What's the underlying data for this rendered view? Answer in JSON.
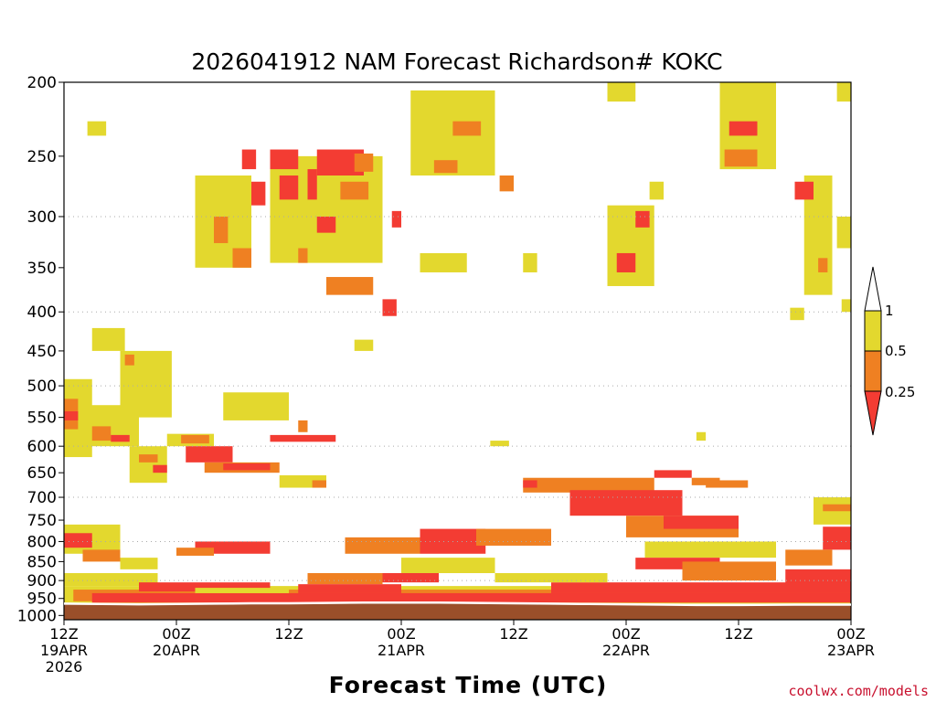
{
  "chart_data": {
    "type": "heatmap",
    "title": "2026041912 NAM Forecast Richardson# KOKC",
    "xlabel": "Forecast Time (UTC)",
    "ylabel": "",
    "credit": "coolwx.com/models",
    "y_axis": {
      "unit": "hPa",
      "range": [
        1000,
        200
      ],
      "ticks": [
        "200",
        "250",
        "300",
        "350",
        "400",
        "450",
        "500",
        "550",
        "600",
        "650",
        "700",
        "750",
        "800",
        "850",
        "900",
        "950",
        "1000"
      ]
    },
    "x_axis": {
      "unit": "hours from 2026-04-19 12Z",
      "range": [
        0,
        84
      ],
      "ticks": [
        {
          "hour": 0,
          "line1": "12Z",
          "line2": "19APR",
          "line3": "2026"
        },
        {
          "hour": 12,
          "line1": "00Z",
          "line2": "20APR",
          "line3": ""
        },
        {
          "hour": 24,
          "line1": "12Z",
          "line2": "",
          "line3": ""
        },
        {
          "hour": 36,
          "line1": "00Z",
          "line2": "21APR",
          "line3": ""
        },
        {
          "hour": 48,
          "line1": "12Z",
          "line2": "",
          "line3": ""
        },
        {
          "hour": 60,
          "line1": "00Z",
          "line2": "22APR",
          "line3": ""
        },
        {
          "hour": 72,
          "line1": "12Z",
          "line2": "",
          "line3": ""
        },
        {
          "hour": 84,
          "line1": "00Z",
          "line2": "23APR",
          "line3": ""
        }
      ]
    },
    "legend": {
      "placement": "right",
      "labels": [
        "1",
        "0.5",
        "0.25"
      ],
      "bins": [
        {
          "range": "<0.25",
          "color": "#f33c33"
        },
        {
          "range": "0.25-0.5",
          "color": "#ef8022"
        },
        {
          "range": "0.5-1",
          "color": "#e3d82e"
        },
        {
          "range": ">1",
          "color": "#ffffff"
        }
      ]
    },
    "colors": {
      "low": "#f33c33",
      "mid": "#ef8022",
      "high": "#e3d82e",
      "surface": "#9a4f2a",
      "grid": "#aaaaaa"
    },
    "surface_pressure_hPa": [
      965,
      966,
      967,
      966,
      965,
      964,
      964,
      963,
      962,
      962,
      962,
      963,
      964,
      965,
      966,
      967,
      968,
      969,
      969,
      968,
      968
    ],
    "surface_pressure_hours": [
      0,
      4,
      8,
      12,
      16,
      20,
      24,
      28,
      32,
      36,
      40,
      44,
      48,
      52,
      56,
      60,
      64,
      68,
      72,
      78,
      84
    ],
    "regions": [
      {
        "bin": "high",
        "h0": 0,
        "h1": 84,
        "p0": 915,
        "p1": 965
      },
      {
        "bin": "mid",
        "h0": 1,
        "h1": 84,
        "p0": 925,
        "p1": 958
      },
      {
        "bin": "low",
        "h0": 3,
        "h1": 84,
        "p0": 935,
        "p1": 962
      },
      {
        "bin": "high",
        "h0": 2.5,
        "h1": 4.5,
        "p0": 225,
        "p1": 235
      },
      {
        "bin": "high",
        "h0": 14,
        "h1": 20,
        "p0": 265,
        "p1": 350
      },
      {
        "bin": "mid",
        "h0": 16,
        "h1": 17.5,
        "p0": 300,
        "p1": 325
      },
      {
        "bin": "mid",
        "h0": 18,
        "h1": 20,
        "p0": 330,
        "p1": 350
      },
      {
        "bin": "high",
        "h0": 22,
        "h1": 34,
        "p0": 250,
        "p1": 345
      },
      {
        "bin": "low",
        "h0": 19,
        "h1": 20.5,
        "p0": 245,
        "p1": 260
      },
      {
        "bin": "low",
        "h0": 20,
        "h1": 21.5,
        "p0": 270,
        "p1": 290
      },
      {
        "bin": "low",
        "h0": 22,
        "h1": 25,
        "p0": 245,
        "p1": 260
      },
      {
        "bin": "low",
        "h0": 23,
        "h1": 25,
        "p0": 265,
        "p1": 285
      },
      {
        "bin": "low",
        "h0": 26,
        "h1": 27,
        "p0": 260,
        "p1": 285
      },
      {
        "bin": "low",
        "h0": 27,
        "h1": 32,
        "p0": 245,
        "p1": 265
      },
      {
        "bin": "mid",
        "h0": 31,
        "h1": 33,
        "p0": 248,
        "p1": 262
      },
      {
        "bin": "mid",
        "h0": 29.5,
        "h1": 32.5,
        "p0": 270,
        "p1": 285
      },
      {
        "bin": "low",
        "h0": 27,
        "h1": 29,
        "p0": 300,
        "p1": 315
      },
      {
        "bin": "mid",
        "h0": 25,
        "h1": 26,
        "p0": 330,
        "p1": 345
      },
      {
        "bin": "mid",
        "h0": 28,
        "h1": 33,
        "p0": 360,
        "p1": 380
      },
      {
        "bin": "low",
        "h0": 34,
        "h1": 35.5,
        "p0": 385,
        "p1": 405
      },
      {
        "bin": "low",
        "h0": 35,
        "h1": 36,
        "p0": 295,
        "p1": 310
      },
      {
        "bin": "high",
        "h0": 37,
        "h1": 46,
        "p0": 205,
        "p1": 265
      },
      {
        "bin": "high",
        "h0": 38,
        "h1": 43,
        "p0": 335,
        "p1": 355
      },
      {
        "bin": "mid",
        "h0": 41.5,
        "h1": 44.5,
        "p0": 225,
        "p1": 235
      },
      {
        "bin": "mid",
        "h0": 39.5,
        "h1": 42,
        "p0": 253,
        "p1": 263
      },
      {
        "bin": "mid",
        "h0": 46.5,
        "h1": 48,
        "p0": 265,
        "p1": 278
      },
      {
        "bin": "high",
        "h0": 49,
        "h1": 50.5,
        "p0": 335,
        "p1": 355
      },
      {
        "bin": "high",
        "h0": 58,
        "h1": 61,
        "p0": 200,
        "p1": 212
      },
      {
        "bin": "high",
        "h0": 58,
        "h1": 63,
        "p0": 290,
        "p1": 370
      },
      {
        "bin": "low",
        "h0": 59,
        "h1": 61,
        "p0": 335,
        "p1": 355
      },
      {
        "bin": "low",
        "h0": 61,
        "h1": 62.5,
        "p0": 295,
        "p1": 310
      },
      {
        "bin": "high",
        "h0": 62.5,
        "h1": 64,
        "p0": 270,
        "p1": 285
      },
      {
        "bin": "high",
        "h0": 70,
        "h1": 76,
        "p0": 200,
        "p1": 260
      },
      {
        "bin": "low",
        "h0": 71,
        "h1": 74,
        "p0": 225,
        "p1": 235
      },
      {
        "bin": "mid",
        "h0": 70.5,
        "h1": 74,
        "p0": 245,
        "p1": 258
      },
      {
        "bin": "high",
        "h0": 79,
        "h1": 82,
        "p0": 265,
        "p1": 380
      },
      {
        "bin": "low",
        "h0": 78,
        "h1": 80,
        "p0": 270,
        "p1": 285
      },
      {
        "bin": "mid",
        "h0": 80.5,
        "h1": 81.5,
        "p0": 340,
        "p1": 355
      },
      {
        "bin": "high",
        "h0": 82.5,
        "h1": 84,
        "p0": 200,
        "p1": 212
      },
      {
        "bin": "high",
        "h0": 82.5,
        "h1": 84,
        "p0": 300,
        "p1": 330
      },
      {
        "bin": "high",
        "h0": 3,
        "h1": 6.5,
        "p0": 420,
        "p1": 450
      },
      {
        "bin": "high",
        "h0": 6,
        "h1": 11.5,
        "p0": 450,
        "p1": 550
      },
      {
        "bin": "mid",
        "h0": 6.5,
        "h1": 7.5,
        "p0": 455,
        "p1": 470
      },
      {
        "bin": "high",
        "h0": 0,
        "h1": 3,
        "p0": 490,
        "p1": 620
      },
      {
        "bin": "mid",
        "h0": 0,
        "h1": 1.5,
        "p0": 520,
        "p1": 570
      },
      {
        "bin": "low",
        "h0": 0,
        "h1": 1.5,
        "p0": 540,
        "p1": 555
      },
      {
        "bin": "high",
        "h0": 2,
        "h1": 8,
        "p0": 530,
        "p1": 600
      },
      {
        "bin": "mid",
        "h0": 3,
        "h1": 5,
        "p0": 565,
        "p1": 590
      },
      {
        "bin": "low",
        "h0": 5,
        "h1": 7,
        "p0": 580,
        "p1": 592
      },
      {
        "bin": "high",
        "h0": 17,
        "h1": 24,
        "p0": 510,
        "p1": 555
      },
      {
        "bin": "mid",
        "h0": 25,
        "h1": 26,
        "p0": 555,
        "p1": 575
      },
      {
        "bin": "low",
        "h0": 22,
        "h1": 29,
        "p0": 580,
        "p1": 592
      },
      {
        "bin": "high",
        "h0": 11,
        "h1": 16,
        "p0": 578,
        "p1": 600
      },
      {
        "bin": "mid",
        "h0": 12.5,
        "h1": 15.5,
        "p0": 580,
        "p1": 595
      },
      {
        "bin": "low",
        "h0": 13,
        "h1": 18,
        "p0": 600,
        "p1": 630
      },
      {
        "bin": "mid",
        "h0": 15,
        "h1": 23,
        "p0": 630,
        "p1": 650
      },
      {
        "bin": "low",
        "h0": 17,
        "h1": 22,
        "p0": 632,
        "p1": 645
      },
      {
        "bin": "high",
        "h0": 7,
        "h1": 11,
        "p0": 600,
        "p1": 670
      },
      {
        "bin": "mid",
        "h0": 8,
        "h1": 10,
        "p0": 615,
        "p1": 630
      },
      {
        "bin": "low",
        "h0": 9.5,
        "h1": 11,
        "p0": 635,
        "p1": 650
      },
      {
        "bin": "high",
        "h0": 23,
        "h1": 28,
        "p0": 655,
        "p1": 680
      },
      {
        "bin": "mid",
        "h0": 26.5,
        "h1": 28,
        "p0": 665,
        "p1": 680
      },
      {
        "bin": "mid",
        "h0": 49,
        "h1": 63,
        "p0": 660,
        "p1": 690
      },
      {
        "bin": "low",
        "h0": 54,
        "h1": 66,
        "p0": 685,
        "p1": 740
      },
      {
        "bin": "mid",
        "h0": 60,
        "h1": 72,
        "p0": 740,
        "p1": 790
      },
      {
        "bin": "low",
        "h0": 64,
        "h1": 72,
        "p0": 740,
        "p1": 770
      },
      {
        "bin": "high",
        "h0": 62,
        "h1": 76,
        "p0": 800,
        "p1": 840
      },
      {
        "bin": "low",
        "h0": 61,
        "h1": 70,
        "p0": 840,
        "p1": 870
      },
      {
        "bin": "mid",
        "h0": 66,
        "h1": 76,
        "p0": 850,
        "p1": 900
      },
      {
        "bin": "low",
        "h0": 63,
        "h1": 67,
        "p0": 645,
        "p1": 660
      },
      {
        "bin": "mid",
        "h0": 67,
        "h1": 70,
        "p0": 660,
        "p1": 675
      },
      {
        "bin": "high",
        "h0": 80,
        "h1": 84,
        "p0": 700,
        "p1": 760
      },
      {
        "bin": "mid",
        "h0": 81,
        "h1": 84,
        "p0": 715,
        "p1": 730
      },
      {
        "bin": "low",
        "h0": 81,
        "h1": 84,
        "p0": 765,
        "p1": 820
      },
      {
        "bin": "mid",
        "h0": 77,
        "h1": 82,
        "p0": 820,
        "p1": 860
      },
      {
        "bin": "low",
        "h0": 77,
        "h1": 84,
        "p0": 870,
        "p1": 910
      },
      {
        "bin": "high",
        "h0": 0,
        "h1": 6,
        "p0": 760,
        "p1": 830
      },
      {
        "bin": "low",
        "h0": 0,
        "h1": 3,
        "p0": 780,
        "p1": 815
      },
      {
        "bin": "mid",
        "h0": 2,
        "h1": 6,
        "p0": 820,
        "p1": 850
      },
      {
        "bin": "high",
        "h0": 6,
        "h1": 10,
        "p0": 840,
        "p1": 870
      },
      {
        "bin": "low",
        "h0": 14,
        "h1": 22,
        "p0": 800,
        "p1": 830
      },
      {
        "bin": "mid",
        "h0": 12,
        "h1": 16,
        "p0": 815,
        "p1": 835
      },
      {
        "bin": "mid",
        "h0": 30,
        "h1": 38,
        "p0": 790,
        "p1": 830
      },
      {
        "bin": "low",
        "h0": 38,
        "h1": 45,
        "p0": 770,
        "p1": 830
      },
      {
        "bin": "mid",
        "h0": 44,
        "h1": 52,
        "p0": 770,
        "p1": 810
      },
      {
        "bin": "high",
        "h0": 36,
        "h1": 46,
        "p0": 840,
        "p1": 880
      },
      {
        "bin": "low",
        "h0": 34,
        "h1": 40,
        "p0": 880,
        "p1": 905
      },
      {
        "bin": "mid",
        "h0": 26,
        "h1": 34,
        "p0": 880,
        "p1": 910
      },
      {
        "bin": "high",
        "h0": 0,
        "h1": 10,
        "p0": 880,
        "p1": 915
      },
      {
        "bin": "low",
        "h0": 8,
        "h1": 22,
        "p0": 905,
        "p1": 930
      },
      {
        "bin": "high",
        "h0": 14,
        "h1": 24,
        "p0": 920,
        "p1": 935
      },
      {
        "bin": "low",
        "h0": 25,
        "h1": 36,
        "p0": 910,
        "p1": 935
      },
      {
        "bin": "low",
        "h0": 52,
        "h1": 84,
        "p0": 905,
        "p1": 935
      },
      {
        "bin": "high",
        "h0": 46,
        "h1": 58,
        "p0": 880,
        "p1": 905
      },
      {
        "bin": "high",
        "h0": 77.5,
        "h1": 79,
        "p0": 395,
        "p1": 410
      },
      {
        "bin": "high",
        "h0": 83,
        "h1": 84,
        "p0": 385,
        "p1": 400
      },
      {
        "bin": "high",
        "h0": 31,
        "h1": 33,
        "p0": 435,
        "p1": 450
      },
      {
        "bin": "high",
        "h0": 45.5,
        "h1": 47.5,
        "p0": 590,
        "p1": 600
      },
      {
        "bin": "high",
        "h0": 67.5,
        "h1": 68.5,
        "p0": 575,
        "p1": 590
      },
      {
        "bin": "low",
        "h0": 49,
        "h1": 50.5,
        "p0": 665,
        "p1": 680
      },
      {
        "bin": "mid",
        "h0": 68.5,
        "h1": 73,
        "p0": 665,
        "p1": 680
      }
    ]
  }
}
